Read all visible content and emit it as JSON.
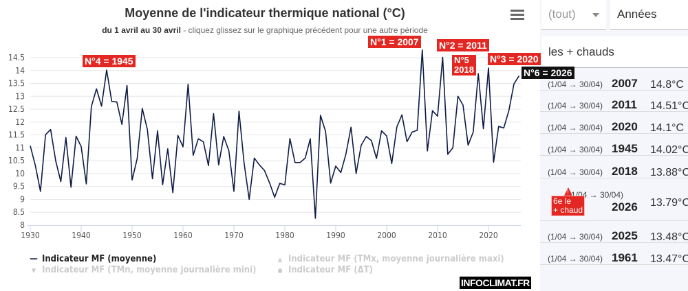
{
  "chart_data": {
    "type": "line",
    "title": "Moyenne de l'indicateur thermique national (°C)",
    "subtitle_bold": "du 1 avril au 30 avril",
    "subtitle_rest": " - cliquez glissez sur le graphique précédent pour une autre période",
    "xlim": [
      1930,
      2026
    ],
    "ylim": [
      8,
      14.8
    ],
    "x_ticks": [
      1930,
      1940,
      1950,
      1960,
      1970,
      1980,
      1990,
      2000,
      2010,
      2020
    ],
    "y_ticks": [
      "8",
      "8.5",
      "9",
      "9.5",
      "10",
      "10.5",
      "11",
      "11.5",
      "12",
      "12.5",
      "13",
      "13.5",
      "14",
      "14.5"
    ],
    "grid": true,
    "series": [
      {
        "name": "Indicateur MF (moyenne)",
        "color": "#0d1b45",
        "x_start": 1930,
        "values": [
          11.08,
          10.31,
          9.31,
          11.51,
          11.71,
          10.49,
          9.69,
          11.4,
          9.47,
          11.45,
          11.05,
          9.6,
          12.6,
          13.29,
          12.62,
          14.02,
          12.8,
          12.78,
          11.91,
          13.42,
          9.75,
          10.58,
          12.53,
          11.71,
          9.8,
          11.66,
          9.57,
          10.96,
          9.26,
          11.48,
          11.04,
          13.47,
          10.71,
          11.35,
          11.23,
          10.31,
          12.33,
          10.34,
          11.44,
          10.89,
          9.31,
          12.42,
          10.4,
          9.0,
          10.6,
          10.34,
          10.12,
          9.64,
          9.08,
          9.62,
          9.56,
          11.36,
          10.43,
          10.43,
          10.6,
          11.35,
          8.27,
          12.26,
          11.64,
          9.63,
          10.29,
          10.04,
          10.76,
          11.8,
          10.0,
          11.1,
          11.44,
          11.28,
          10.59,
          11.66,
          11.46,
          10.39,
          11.81,
          12.28,
          11.24,
          11.61,
          11.68,
          14.8,
          10.88,
          12.44,
          12.23,
          14.51,
          10.75,
          11.0,
          13.0,
          12.66,
          11.1,
          11.61,
          13.88,
          11.74,
          14.1,
          10.44,
          11.83,
          11.77,
          12.44,
          13.48,
          13.79
        ]
      }
    ],
    "annotations": [
      {
        "text": "N°4 = 1945"
      },
      {
        "text": "N°1 = 2007"
      },
      {
        "text": "N°2 = 2011"
      },
      {
        "text1": "N°5",
        "text2": "2018"
      },
      {
        "text": "N°3 = 2020"
      },
      {
        "text": "N°6 = 2026"
      }
    ],
    "legend": [
      {
        "label": "Indicateur MF (moyenne)",
        "active": true
      },
      {
        "label": "Indicateur MF (TMx, moyenne journalière maxi)",
        "active": false
      },
      {
        "label": "Indicateur MF (TMn, moyenne journalière mini)",
        "active": false
      },
      {
        "label": "Indicateur MF (ΔT)",
        "active": false
      }
    ]
  },
  "branding": "INFOCLIMAT.FR",
  "panel": {
    "period_select": "(tout)",
    "unit_select": "Années",
    "filter": "les + chauds",
    "rows": [
      {
        "period": "(1/04 → 30/04)",
        "year": "2007",
        "value": "14.8°C"
      },
      {
        "period": "(1/04 → 30/04)",
        "year": "2011",
        "value": "14.51°C"
      },
      {
        "period": "(1/04 → 30/04)",
        "year": "2020",
        "value": "14.1°C"
      },
      {
        "period": "(1/04 → 30/04)",
        "year": "1945",
        "value": "14.02°C"
      },
      {
        "period": "(1/04 → 30/04)",
        "year": "2018",
        "value": "13.88°C"
      },
      {
        "period": "(1/04 → 30/04)",
        "year": "2026",
        "value": "13.79°C",
        "badge1": "6e le",
        "badge2": "+ chaud"
      },
      {
        "period": "(1/04 → 30/04)",
        "year": "2025",
        "value": "13.48°C"
      },
      {
        "period": "(1/04 → 30/04)",
        "year": "1961",
        "value": "13.47°C"
      }
    ]
  }
}
